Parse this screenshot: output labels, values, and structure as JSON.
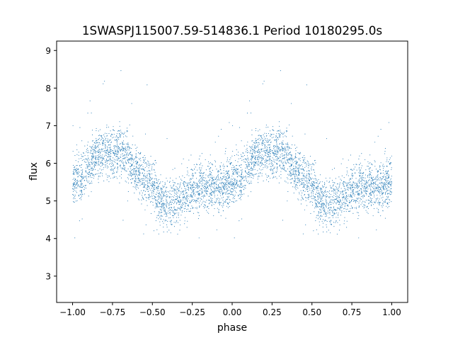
{
  "chart_data": {
    "type": "scatter",
    "title": "1SWASPJ115007.59-514836.1 Period 10180295.0s",
    "xlabel": "phase",
    "ylabel": "flux",
    "xlim": [
      -1.1,
      1.1
    ],
    "ylim": [
      2.3,
      9.25
    ],
    "x_ticks": [
      -1.0,
      -0.75,
      -0.5,
      -0.25,
      0.0,
      0.25,
      0.5,
      0.75,
      1.0
    ],
    "x_tick_labels": [
      "−1.00",
      "−0.75",
      "−0.50",
      "−0.25",
      "0.00",
      "0.25",
      "0.50",
      "0.75",
      "1.00"
    ],
    "y_ticks": [
      3,
      4,
      5,
      6,
      7,
      8,
      9
    ],
    "y_tick_labels": [
      "3",
      "4",
      "5",
      "6",
      "7",
      "8",
      "9"
    ],
    "grid": false,
    "marker_color": "#1f77b4",
    "phase_trend": {
      "phase": [
        0.0,
        0.05,
        0.1,
        0.15,
        0.2,
        0.25,
        0.3,
        0.35,
        0.4,
        0.45,
        0.5,
        0.55,
        0.6,
        0.65,
        0.7,
        0.75,
        0.8,
        0.85,
        0.9,
        0.95,
        1.0
      ],
      "flux": [
        5.5,
        5.6,
        5.9,
        6.2,
        6.3,
        6.25,
        6.3,
        6.1,
        5.8,
        5.6,
        5.4,
        5.0,
        4.9,
        5.0,
        5.1,
        5.25,
        5.4,
        5.4,
        5.4,
        5.45,
        5.5
      ],
      "mirrored": true
    }
  }
}
